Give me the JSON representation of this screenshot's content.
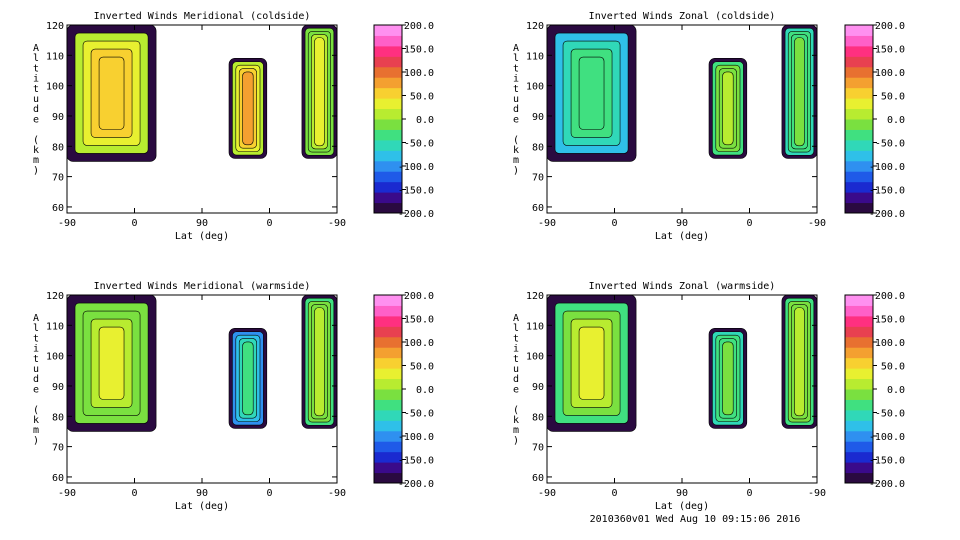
{
  "footer": "2010360v01 Wed Aug 10 09:15:06 2016",
  "colorbar": {
    "ticks": [
      "200.0",
      "150.0",
      "100.0",
      "50.0",
      "0.0",
      "-50.0",
      "-100.0",
      "-150.0",
      "-200.0"
    ],
    "range": [
      -200,
      200
    ],
    "colors": [
      "#2a0a40",
      "#3a0a8a",
      "#1a2ad0",
      "#1f5ae8",
      "#2f90f0",
      "#2fc0e8",
      "#30d8b8",
      "#40e080",
      "#7ae040",
      "#b8ec30",
      "#e8f030",
      "#f8d030",
      "#f4a030",
      "#e87030",
      "#e84050",
      "#ff3080",
      "#ff60c8",
      "#ff90f0"
    ]
  },
  "chart_data": [
    {
      "type": "heatmap",
      "title": "Inverted Winds Meridional (coldside)",
      "xlabel": "Lat (deg)",
      "ylabel": "Altitude (km)",
      "x_tick_labels": [
        "-90",
        "0",
        "90",
        "0",
        "-90"
      ],
      "y_tick_labels": [
        "60",
        "70",
        "80",
        "90",
        "100",
        "110",
        "120"
      ],
      "ylim": [
        58,
        120
      ],
      "color_range": [
        -200,
        200
      ],
      "mean_value_by_region": [
        {
          "region": "left",
          "value": 10
        },
        {
          "region": "middle",
          "value": 20
        },
        {
          "region": "right",
          "value": -20
        }
      ]
    },
    {
      "type": "heatmap",
      "title": "Inverted Winds Zonal (coldside)",
      "xlabel": "Lat (deg)",
      "ylabel": "Altitude (km)",
      "x_tick_labels": [
        "-90",
        "0",
        "90",
        "0",
        "-90"
      ],
      "y_tick_labels": [
        "60",
        "70",
        "80",
        "90",
        "100",
        "110",
        "120"
      ],
      "ylim": [
        58,
        120
      ],
      "color_range": [
        -200,
        200
      ],
      "mean_value_by_region": [
        {
          "region": "left",
          "value": -80
        },
        {
          "region": "middle",
          "value": -40
        },
        {
          "region": "right",
          "value": -60
        }
      ]
    },
    {
      "type": "heatmap",
      "title": "Inverted Winds Meridional (warmside)",
      "xlabel": "Lat (deg)",
      "ylabel": "Altitude (km)",
      "x_tick_labels": [
        "-90",
        "0",
        "90",
        "0",
        "-90"
      ],
      "y_tick_labels": [
        "60",
        "70",
        "80",
        "90",
        "100",
        "110",
        "120"
      ],
      "ylim": [
        58,
        120
      ],
      "color_range": [
        -200,
        200
      ],
      "mean_value_by_region": [
        {
          "region": "left",
          "value": -20
        },
        {
          "region": "middle",
          "value": -90
        },
        {
          "region": "right",
          "value": -40
        }
      ]
    },
    {
      "type": "heatmap",
      "title": "Inverted Winds Zonal (warmside)",
      "xlabel": "Lat (deg)",
      "ylabel": "Altitude (km)",
      "x_tick_labels": [
        "-90",
        "0",
        "90",
        "0",
        "-90"
      ],
      "y_tick_labels": [
        "60",
        "70",
        "80",
        "90",
        "100",
        "110",
        "120"
      ],
      "ylim": [
        58,
        120
      ],
      "color_range": [
        -200,
        200
      ],
      "mean_value_by_region": [
        {
          "region": "left",
          "value": -30
        },
        {
          "region": "middle",
          "value": -60
        },
        {
          "region": "right",
          "value": -40
        }
      ]
    }
  ]
}
